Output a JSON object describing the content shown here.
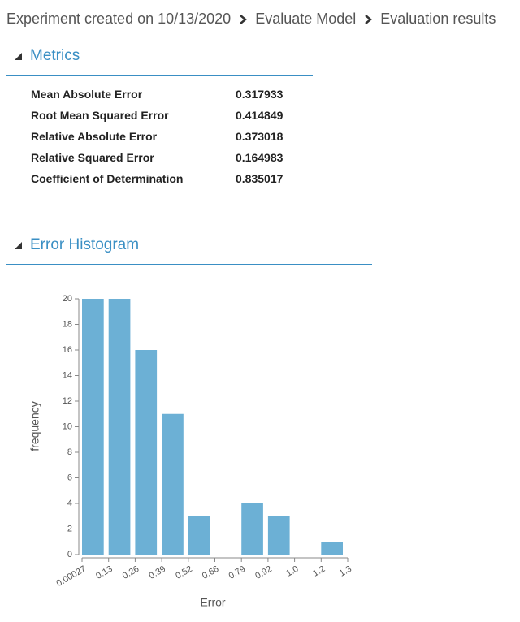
{
  "breadcrumb": [
    "Experiment created on 10/13/2020",
    "Evaluate Model",
    "Evaluation results"
  ],
  "metrics": {
    "title": "Metrics",
    "rows": [
      [
        "Mean Absolute Error",
        0.317933
      ],
      [
        "Root Mean Squared Error",
        0.414849
      ],
      [
        "Relative Absolute Error",
        0.373018
      ],
      [
        "Relative Squared Error",
        0.164983
      ],
      [
        "Coefficient of Determination",
        0.835017
      ]
    ]
  },
  "histogram_section": {
    "title": "Error Histogram"
  },
  "chart_data": {
    "type": "histogram",
    "x_label": "Error",
    "y_label": "frequency",
    "bins": [
      0.00027,
      0.1313,
      0.2623,
      0.3933,
      0.5243,
      0.6553,
      0.7863,
      0.9173,
      1.0483,
      1.1793,
      1.3103
    ],
    "values": [
      20,
      20,
      16,
      11,
      3,
      0,
      4,
      3,
      0,
      1
    ],
    "color": "#6cb0d5",
    "xlim": [
      0.00027,
      1.3103
    ],
    "xticks": [
      0.00027,
      {
        "value": 0.1313,
        "label": "0.13"
      },
      {
        "value": 0.2623,
        "label": "0.26"
      },
      {
        "value": 0.3933,
        "label": "0.39"
      },
      {
        "value": 0.5243,
        "label": "0.52"
      },
      {
        "value": 0.6553,
        "label": "0.66"
      },
      {
        "value": 0.7863,
        "label": "0.79"
      },
      {
        "value": 0.9173,
        "label": "0.92"
      },
      {
        "value": 1.0483,
        "label": "1.0"
      },
      {
        "value": 1.1793,
        "label": "1.2"
      },
      {
        "value": 1.3103,
        "label": "1.3"
      }
    ],
    "ylim": [
      0,
      20
    ],
    "yticks": [
      0,
      2,
      4,
      6,
      8,
      10,
      12,
      14,
      16,
      18,
      20
    ]
  }
}
